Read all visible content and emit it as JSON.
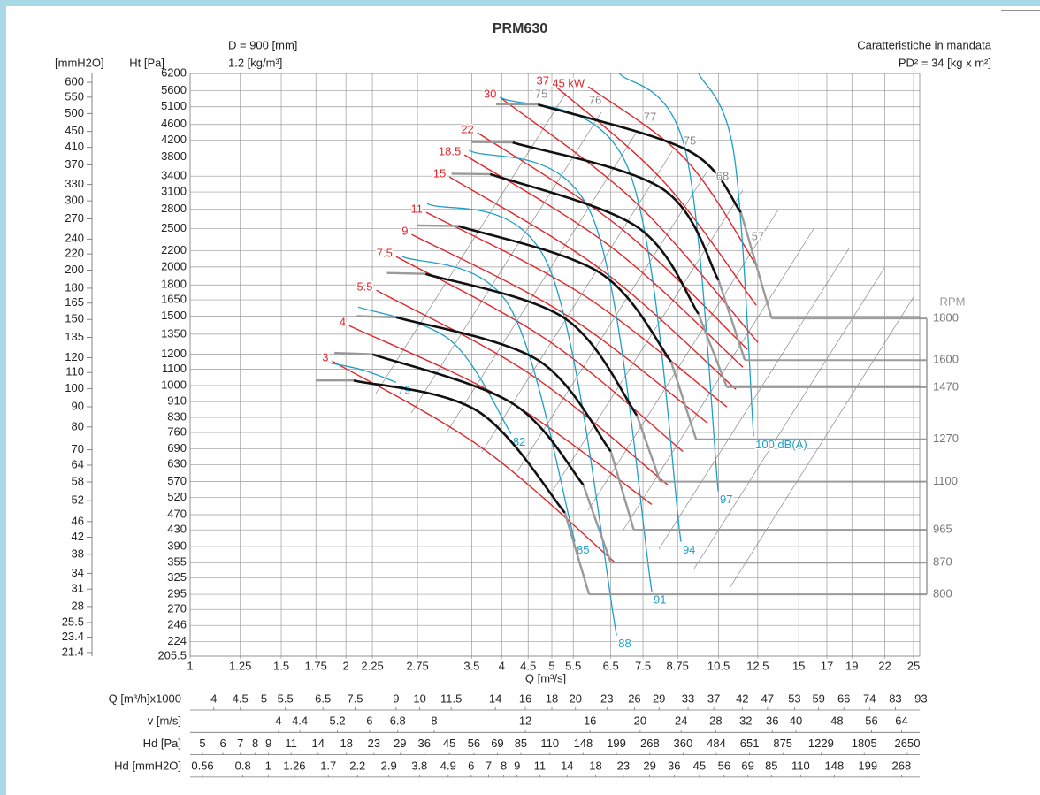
{
  "chart_data": {
    "type": "line",
    "title": "PRM630",
    "notes_left": [
      "D = 900 [mm]",
      "1.2 [kg/m³]"
    ],
    "notes_right": [
      "Caratteristiche in mandata",
      "PD² = 34 [kg x m²]"
    ],
    "y2_label": "[mmH2O]",
    "y_label": "Ht [Pa]",
    "x_label": "Q [m³/s]",
    "log_x": true,
    "log_y": true,
    "grid": true,
    "xlim": [
      1,
      25
    ],
    "xticks": [
      1,
      1.25,
      1.5,
      1.75,
      2,
      2.25,
      2.75,
      3.5,
      4,
      4.5,
      5,
      5.5,
      6.5,
      7.5,
      8.75,
      10.5,
      12.5,
      15,
      17,
      19,
      22,
      25
    ],
    "ylim": [
      205.5,
      6200
    ],
    "yticks": [
      6200,
      5600,
      5100,
      4600,
      4200,
      3800,
      3400,
      3100,
      2800,
      2500,
      2200,
      2000,
      1800,
      1650,
      1500,
      1350,
      1200,
      1100,
      1000,
      910,
      830,
      760,
      690,
      630,
      570,
      520,
      470,
      430,
      390,
      355,
      325,
      295,
      270,
      246,
      224,
      205.5
    ],
    "y2lim": [
      20.95,
      632
    ],
    "y2ticks": [
      600,
      550,
      500,
      450,
      410,
      370,
      330,
      300,
      270,
      240,
      220,
      200,
      180,
      165,
      150,
      135,
      120,
      110,
      100,
      90,
      80,
      70,
      64,
      58,
      52,
      46,
      42,
      38,
      34,
      31,
      28,
      25.5,
      23.4,
      21.4
    ],
    "rpm_label": "RPM",
    "rpm_color": "#111111",
    "rpm_tail_color": "#9a9a9a",
    "rpm_curves": [
      {
        "name": "800",
        "x": [
          1.75,
          2.07,
          3.6,
          5.3,
          5.9
        ],
        "values": [
          1030,
          1030,
          860,
          475,
          295
        ]
      },
      {
        "name": "870",
        "x": [
          1.9,
          2.25,
          4.2,
          5.75,
          6.5
        ],
        "values": [
          1210,
          1200,
          900,
          560,
          355
        ]
      },
      {
        "name": "965",
        "x": [
          2.1,
          2.5,
          4.7,
          6.5,
          7.2
        ],
        "values": [
          1500,
          1490,
          1160,
          680,
          430
        ]
      },
      {
        "name": "1100",
        "x": [
          2.4,
          2.85,
          5.3,
          7.3,
          8.1
        ],
        "values": [
          1930,
          1920,
          1480,
          840,
          570
        ]
      },
      {
        "name": "1270",
        "x": [
          2.75,
          3.3,
          6.2,
          8.5,
          9.5
        ],
        "values": [
          2550,
          2540,
          1930,
          1150,
          730
        ]
      },
      {
        "name": "1470",
        "x": [
          3.2,
          3.8,
          7.3,
          9.6,
          10.9
        ],
        "values": [
          3450,
          3440,
          2530,
          1520,
          990
        ]
      },
      {
        "name": "1600",
        "x": [
          3.5,
          4.2,
          8.2,
          10.5,
          11.8
        ],
        "values": [
          4150,
          4140,
          3150,
          1850,
          1160
        ]
      },
      {
        "name": "1800",
        "x": [
          3.9,
          4.7,
          9.2,
          11.6,
          13.3
        ],
        "values": [
          5180,
          5170,
          3940,
          2750,
          1480
        ]
      }
    ],
    "power_color": "#e0262b",
    "power_curves": [
      {
        "name": "3",
        "x": [
          1.88,
          3.66,
          6.61
        ],
        "values": [
          1154,
          695,
          356
        ]
      },
      {
        "name": "4",
        "x": [
          2.03,
          4.14,
          7.8
        ],
        "values": [
          1419,
          909,
          499
        ]
      },
      {
        "name": "5.5",
        "x": [
          2.29,
          4.55,
          8.38
        ],
        "values": [
          1745,
          1067,
          559
        ]
      },
      {
        "name": "7.5",
        "x": [
          2.5,
          4.92,
          8.96
        ],
        "values": [
          2125,
          1300,
          680
        ]
      },
      {
        "name": "9",
        "x": [
          2.68,
          5.37,
          10
        ],
        "values": [
          2418,
          1501,
          803
        ]
      },
      {
        "name": "11",
        "x": [
          2.86,
          5.81,
          10.9
        ],
        "values": [
          2752,
          1682,
          882
        ]
      },
      {
        "name": "15",
        "x": [
          3.17,
          6.24,
          11.34
        ],
        "values": [
          3384,
          1965,
          978
        ]
      },
      {
        "name": "18.5",
        "x": [
          3.39,
          6.54,
          11.7
        ],
        "values": [
          3851,
          2237,
          1113
        ]
      },
      {
        "name": "22",
        "x": [
          3.59,
          6.8,
          11.94
        ],
        "values": [
          4385,
          2506,
          1235
        ]
      },
      {
        "name": "30",
        "x": [
          3.97,
          7.3,
          12.51
        ],
        "values": [
          5391,
          2897,
          1286
        ]
      },
      {
        "name": "37",
        "x": [
          5.02,
          8.22,
          12.42
        ],
        "values": [
          5827,
          3298,
          1598
        ]
      },
      {
        "name": "45 kW",
        "x": [
          5.88,
          9.06,
          12.42
        ],
        "values": [
          5735,
          3753,
          2019
        ]
      }
    ],
    "noise_color": "#1e9fc6",
    "noise_curves": [
      {
        "name": "79",
        "x": [
          1.855,
          2.154,
          2.5
        ],
        "values": [
          1142,
          1095,
          1019
        ]
      },
      {
        "name": "82",
        "x": [
          2.113,
          3.19,
          4.17
        ],
        "values": [
          1582,
          1300,
          754
        ]
      },
      {
        "name": "85",
        "x": [
          2.57,
          4.13,
          5.54
        ],
        "values": [
          2125,
          1598,
          401
        ]
      },
      {
        "name": "88",
        "x": [
          2.87,
          4.92,
          6.67
        ],
        "values": [
          2897,
          2019,
          232
        ]
      },
      {
        "name": "91",
        "x": [
          3.46,
          5.99,
          7.8
        ],
        "values": [
          3952,
          2682,
          300
        ]
      },
      {
        "name": "94",
        "x": [
          3.97,
          7.02,
          8.88
        ],
        "values": [
          5391,
          3563,
          401
        ]
      },
      {
        "name": "97",
        "x": [
          6.75,
          9.06,
          10.48
        ],
        "values": [
          6200,
          3952,
          539
        ]
      },
      {
        "name": "100 dB(A)",
        "x": [
          9.61,
          11.25,
          12.27
        ],
        "values": [
          6200,
          3851,
          743
        ]
      }
    ],
    "efficiency_labels": [
      "75",
      "76",
      "77",
      "75",
      "68",
      "57"
    ],
    "bottom_scales": [
      {
        "label": "Q [m³/h]x1000",
        "lim": [
          3.6,
          90
        ],
        "ticks": [
          4,
          4.5,
          5,
          5.5,
          6.5,
          7.5,
          9,
          10,
          11.5,
          14,
          16,
          18,
          20,
          23,
          26,
          29,
          33,
          37,
          42,
          47,
          53,
          59,
          66,
          74,
          83,
          93
        ]
      },
      {
        "label": "v [m/s]",
        "lim": [
          2.7,
          67.5
        ],
        "ticks": [
          4,
          4.4,
          5.2,
          6,
          6.8,
          8,
          12,
          16,
          20,
          24,
          28,
          32,
          36,
          40,
          48,
          56,
          64
        ]
      },
      {
        "label": "Hd [Pa]",
        "lim": [
          4.48,
          2800
        ],
        "ticks": [
          5,
          6,
          7,
          8,
          9,
          11,
          14,
          18,
          23,
          29,
          36,
          45,
          56,
          69,
          85,
          110,
          148,
          199,
          268,
          360,
          484,
          651,
          875,
          1229,
          1805,
          2650
        ]
      },
      {
        "label": "Hd [mmH2O]",
        "lim": [
          0.502,
          298
        ],
        "ticks": [
          0.56,
          0.8,
          1,
          1.26,
          1.7,
          2.2,
          2.9,
          3.8,
          4.9,
          6,
          7,
          8,
          9,
          11,
          14,
          18,
          23,
          29,
          36,
          45,
          56,
          69,
          85,
          110,
          148,
          199,
          268
        ]
      }
    ]
  }
}
